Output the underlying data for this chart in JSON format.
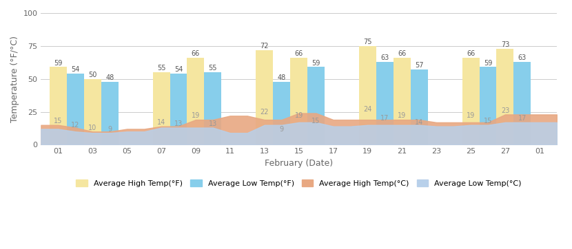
{
  "x_tick_labels": [
    "01",
    "03",
    "05",
    "07",
    "09",
    "11",
    "13",
    "15",
    "17",
    "19",
    "21",
    "23",
    "25",
    "27",
    "01"
  ],
  "x_tick_pos": [
    1,
    3,
    5,
    7,
    9,
    11,
    13,
    15,
    17,
    19,
    21,
    23,
    25,
    27,
    29
  ],
  "bar_high_f_x": [
    1,
    3,
    7,
    9,
    13,
    15,
    19,
    21,
    25,
    27
  ],
  "bar_low_f_x": [
    2,
    4,
    8,
    10,
    14,
    16,
    20,
    22,
    26,
    28
  ],
  "avg_high_f": [
    59,
    50,
    55,
    66,
    72,
    66,
    75,
    66,
    66,
    73
  ],
  "avg_low_f": [
    54,
    48,
    54,
    55,
    48,
    59,
    63,
    57,
    59,
    63
  ],
  "avg_high_c": [
    15,
    10,
    14,
    19,
    22,
    19,
    24,
    19,
    19,
    23
  ],
  "avg_low_c": [
    12,
    9,
    13,
    13,
    9,
    15,
    17,
    14,
    15,
    17
  ],
  "area_x": [
    0,
    1,
    2,
    3,
    4,
    5,
    6,
    7,
    8,
    9,
    10,
    11,
    12,
    13,
    14,
    15,
    16,
    17,
    18,
    19,
    20,
    21,
    22,
    23,
    24,
    25,
    26,
    27,
    28,
    29,
    30
  ],
  "avg_high_c_area": [
    15,
    15,
    13,
    10,
    10,
    12,
    12,
    14,
    14,
    19,
    19,
    22,
    22,
    19,
    19,
    24,
    24,
    19,
    19,
    19,
    19,
    19,
    19,
    17,
    17,
    17,
    17,
    23,
    23,
    23,
    23
  ],
  "avg_low_c_area": [
    12,
    12,
    10,
    9,
    9,
    10,
    10,
    13,
    13,
    13,
    13,
    9,
    9,
    15,
    15,
    17,
    17,
    14,
    14,
    15,
    15,
    15,
    15,
    14,
    14,
    15,
    15,
    17,
    17,
    17,
    17
  ],
  "color_bar_high_f": "#F5E6A0",
  "color_bar_low_f": "#87CEEB",
  "color_area_high_c": "#E8A882",
  "color_area_low_c": "#B8D0EA",
  "ylabel": "Temperature (°F/°C)",
  "xlabel": "February (Date)",
  "ylim": [
    0,
    100
  ],
  "yticks": [
    0,
    25,
    50,
    75,
    100
  ],
  "bar_width": 1.0
}
